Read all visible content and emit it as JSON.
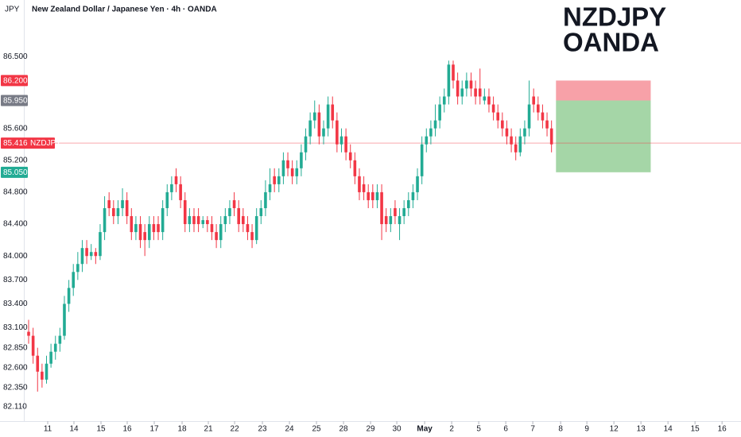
{
  "chart_data": {
    "type": "candlestick",
    "currency": "JPY",
    "title": "New Zealand Dollar / Japanese Yen · 4h · OANDA",
    "annotation": [
      "NZDJPY",
      "OANDA"
    ],
    "up_color": "#22ab94",
    "down_color": "#f23645",
    "open": [
      83.05,
      83.0,
      82.75,
      82.55,
      82.45,
      82.65,
      82.8,
      82.9,
      83.0,
      83.4,
      83.6,
      83.8,
      83.9,
      84.1,
      84.0,
      84.05,
      84.0,
      84.3,
      84.7,
      84.6,
      84.5,
      84.6,
      84.7,
      84.5,
      84.3,
      84.4,
      84.3,
      84.2,
      84.4,
      84.4,
      84.3,
      84.6,
      84.8,
      85.0,
      84.9,
      84.7,
      84.4,
      84.5,
      84.5,
      84.4,
      84.45,
      84.4,
      84.3,
      84.2,
      84.4,
      84.5,
      84.7,
      84.6,
      84.5,
      84.4,
      84.3,
      84.2,
      84.5,
      84.6,
      84.8,
      85.0,
      84.9,
      85.0,
      85.2,
      85.1,
      85.0,
      85.1,
      85.3,
      85.5,
      85.7,
      85.8,
      85.5,
      85.6,
      85.9,
      85.7,
      85.4,
      85.5,
      85.3,
      85.2,
      85.0,
      84.9,
      84.8,
      84.8,
      84.7,
      84.8,
      84.5,
      84.4,
      84.6,
      84.4,
      84.5,
      84.6,
      84.7,
      84.8,
      85.0,
      85.4,
      85.5,
      85.6,
      85.7,
      85.9,
      86.0,
      86.4,
      86.2,
      86.0,
      86.1,
      86.2,
      86.1,
      86.1,
      85.95,
      86.0,
      85.9,
      85.8,
      85.7,
      85.6,
      85.5,
      85.4,
      85.3,
      85.5,
      85.6,
      86.0,
      85.9,
      85.8,
      85.7,
      85.6
    ],
    "high": [
      83.2,
      83.1,
      82.85,
      82.65,
      82.75,
      82.9,
      83.0,
      83.1,
      83.5,
      83.7,
      83.9,
      84.05,
      84.2,
      84.2,
      84.15,
      84.1,
      84.4,
      84.75,
      84.8,
      84.7,
      84.7,
      84.85,
      84.8,
      84.6,
      84.5,
      84.5,
      84.4,
      84.5,
      84.5,
      84.5,
      84.7,
      84.9,
      85.0,
      85.1,
      85.0,
      84.8,
      84.6,
      84.6,
      84.6,
      84.5,
      84.5,
      84.5,
      84.4,
      84.5,
      84.6,
      84.7,
      84.8,
      84.7,
      84.6,
      84.5,
      84.4,
      84.6,
      84.7,
      84.95,
      85.1,
      85.1,
      85.1,
      85.3,
      85.3,
      85.2,
      85.2,
      85.4,
      85.6,
      85.8,
      85.95,
      85.9,
      85.7,
      86.0,
      86.0,
      85.8,
      85.6,
      85.6,
      85.4,
      85.3,
      85.1,
      85.0,
      84.9,
      84.9,
      84.9,
      84.9,
      84.6,
      84.6,
      84.7,
      84.6,
      84.7,
      84.8,
      84.9,
      85.1,
      85.5,
      85.6,
      85.7,
      85.9,
      86.0,
      86.1,
      86.45,
      86.45,
      86.3,
      86.2,
      86.3,
      86.3,
      86.2,
      86.35,
      86.1,
      86.1,
      86.0,
      85.9,
      85.8,
      85.7,
      85.6,
      85.5,
      85.6,
      85.7,
      86.2,
      86.1,
      86.0,
      85.9,
      85.8,
      85.7
    ],
    "low": [
      82.9,
      82.65,
      82.3,
      82.35,
      82.4,
      82.6,
      82.7,
      82.8,
      82.95,
      83.3,
      83.5,
      83.7,
      83.8,
      83.9,
      83.95,
      83.9,
      83.95,
      84.2,
      84.5,
      84.4,
      84.4,
      84.5,
      84.4,
      84.2,
      84.2,
      84.1,
      84.0,
      84.1,
      84.2,
      84.2,
      84.2,
      84.5,
      84.7,
      84.8,
      84.6,
      84.3,
      84.3,
      84.3,
      84.3,
      84.35,
      84.3,
      84.2,
      84.1,
      84.1,
      84.3,
      84.4,
      84.5,
      84.3,
      84.3,
      84.2,
      84.1,
      84.15,
      84.4,
      84.5,
      84.7,
      84.8,
      84.8,
      84.9,
      85.0,
      84.9,
      84.9,
      85.0,
      85.2,
      85.4,
      85.6,
      85.4,
      85.4,
      85.5,
      85.6,
      85.3,
      85.3,
      85.2,
      85.1,
      84.9,
      84.7,
      84.7,
      84.6,
      84.6,
      84.6,
      84.2,
      84.3,
      84.3,
      84.4,
      84.2,
      84.4,
      84.5,
      84.6,
      84.7,
      84.9,
      85.3,
      85.4,
      85.5,
      85.6,
      85.8,
      85.9,
      86.1,
      85.9,
      85.9,
      86.0,
      86.0,
      85.9,
      85.9,
      85.9,
      85.8,
      85.7,
      85.6,
      85.5,
      85.4,
      85.3,
      85.2,
      85.25,
      85.4,
      85.5,
      85.8,
      85.7,
      85.6,
      85.5,
      85.3
    ],
    "close": [
      83.0,
      82.75,
      82.55,
      82.45,
      82.65,
      82.8,
      82.9,
      83.0,
      83.4,
      83.6,
      83.8,
      83.9,
      84.1,
      84.0,
      84.05,
      84.0,
      84.3,
      84.6,
      84.6,
      84.5,
      84.6,
      84.7,
      84.5,
      84.3,
      84.4,
      84.2,
      84.2,
      84.4,
      84.3,
      84.3,
      84.6,
      84.8,
      84.9,
      84.9,
      84.7,
      84.4,
      84.5,
      84.4,
      84.4,
      84.45,
      84.4,
      84.3,
      84.2,
      84.4,
      84.5,
      84.6,
      84.6,
      84.4,
      84.4,
      84.3,
      84.2,
      84.5,
      84.6,
      84.8,
      84.9,
      84.9,
      85.0,
      85.2,
      85.1,
      85.0,
      85.1,
      85.3,
      85.5,
      85.7,
      85.8,
      85.5,
      85.6,
      85.9,
      85.7,
      85.4,
      85.5,
      85.3,
      85.2,
      85.0,
      84.8,
      84.8,
      84.7,
      84.7,
      84.8,
      84.4,
      84.4,
      84.5,
      84.5,
      84.5,
      84.6,
      84.7,
      84.8,
      85.0,
      85.4,
      85.5,
      85.6,
      85.7,
      85.9,
      86.0,
      86.4,
      86.2,
      86.0,
      86.1,
      86.2,
      86.1,
      86.0,
      86.0,
      86.0,
      85.9,
      85.8,
      85.7,
      85.6,
      85.5,
      85.4,
      85.3,
      85.5,
      85.6,
      85.9,
      85.9,
      85.8,
      85.7,
      85.6,
      85.4
    ],
    "xlim": [
      -1.07,
      159.4
    ],
    "ylim": [
      81.93,
      87.21
    ],
    "xticks": [
      {
        "value": 4.27,
        "label": "11"
      },
      {
        "value": 10.14,
        "label": "14"
      },
      {
        "value": 16.19,
        "label": "15"
      },
      {
        "value": 22.06,
        "label": "16"
      },
      {
        "value": 28.11,
        "label": "17"
      },
      {
        "value": 34.34,
        "label": "18"
      },
      {
        "value": 40.21,
        "label": "21"
      },
      {
        "value": 46.09,
        "label": "22"
      },
      {
        "value": 52.31,
        "label": "23"
      },
      {
        "value": 58.36,
        "label": "24"
      },
      {
        "value": 64.41,
        "label": "25"
      },
      {
        "value": 70.46,
        "label": "28"
      },
      {
        "value": 76.51,
        "label": "29"
      },
      {
        "value": 82.38,
        "label": "30"
      },
      {
        "value": 88.61,
        "label": "May"
      },
      {
        "value": 94.66,
        "label": "2"
      },
      {
        "value": 100.71,
        "label": "5"
      },
      {
        "value": 106.76,
        "label": "6"
      },
      {
        "value": 112.81,
        "label": "7"
      },
      {
        "value": 119.04,
        "label": "8"
      },
      {
        "value": 124.91,
        "label": "9"
      },
      {
        "value": 130.96,
        "label": "12"
      },
      {
        "value": 137.01,
        "label": "13"
      },
      {
        "value": 143.06,
        "label": "14"
      },
      {
        "value": 149.11,
        "label": "15"
      },
      {
        "value": 155.16,
        "label": "16"
      }
    ],
    "yticks": [
      {
        "value": 86.5,
        "label": "86.500"
      },
      {
        "value": 85.6,
        "label": "85.600"
      },
      {
        "value": 85.2,
        "label": "85.200"
      },
      {
        "value": 84.8,
        "label": "84.800"
      },
      {
        "value": 84.4,
        "label": "84.400"
      },
      {
        "value": 84.0,
        "label": "84.000"
      },
      {
        "value": 83.7,
        "label": "83.700"
      },
      {
        "value": 83.4,
        "label": "83.400"
      },
      {
        "value": 83.1,
        "label": "83.100"
      },
      {
        "value": 82.85,
        "label": "82.850"
      },
      {
        "value": 82.6,
        "label": "82.600"
      },
      {
        "value": 82.35,
        "label": "82.350"
      },
      {
        "value": 82.11,
        "label": "82.110"
      }
    ],
    "price_markers": [
      {
        "value": 86.2,
        "label": "86.200",
        "color": "#f23645"
      },
      {
        "value": 85.95,
        "label": "85.950",
        "color": "#787b86"
      },
      {
        "value": 85.416,
        "label": "85.416",
        "name": "NZDJPY",
        "color": "#f23645"
      },
      {
        "value": 85.05,
        "label": "85.050",
        "color": "#22ab94"
      }
    ],
    "last_price": 85.416,
    "position": {
      "start": 118,
      "end": 139.2,
      "stop": 86.2,
      "entry": 85.95,
      "target": 85.05,
      "stop_color": "#f7a1a8",
      "target_color": "#a5d6a7"
    }
  }
}
